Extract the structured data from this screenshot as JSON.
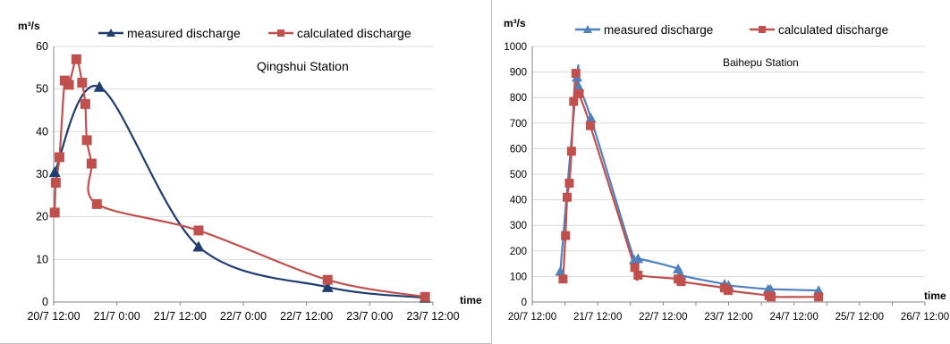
{
  "chart_data": [
    {
      "type": "line",
      "title": "Qingshui Station",
      "ylabel": "m³/s",
      "xlabel": "time",
      "ylim": [
        0,
        60
      ],
      "y_ticks": [
        "0",
        "10",
        "20",
        "30",
        "40",
        "50",
        "60"
      ],
      "x_ticks": [
        "20/7 12:00",
        "21/7 0:00",
        "21/7 12:00",
        "22/7 0:00",
        "22/7 12:00",
        "23/7 0:00",
        "23/7 12:00"
      ],
      "xlim": [
        0,
        72
      ],
      "grid": "horizontal",
      "legend": "top",
      "series": [
        {
          "name": "measured discharge",
          "marker": "triangle",
          "color": "#1F3D6E",
          "x": [
            0.2,
            8.7,
            27.5,
            52.0,
            70.5
          ],
          "y": [
            30.5,
            50.5,
            13,
            3.5,
            1
          ]
        },
        {
          "name": "calculated discharge",
          "marker": "square",
          "color": "#C0504D",
          "x": [
            0.2,
            0.4,
            1.1,
            2.1,
            2.9,
            4.3,
            5.4,
            6.0,
            6.3,
            7.2,
            8.2
          ],
          "y": [
            21,
            28,
            34,
            52,
            51,
            57,
            51.5,
            46.5,
            38,
            32.5,
            23
          ]
        }
      ],
      "tail": {
        "x": [
          27.5,
          52.0,
          70.5
        ],
        "y": [
          16.8,
          5.2,
          1.2
        ]
      }
    },
    {
      "type": "line",
      "title": "Baihepu Station",
      "ylabel": "m³/s",
      "xlabel": "time",
      "ylim": [
        0,
        1000
      ],
      "y_ticks": [
        "0",
        "100",
        "200",
        "300",
        "400",
        "500",
        "600",
        "700",
        "800",
        "900",
        "1000"
      ],
      "x_ticks": [
        "20/7 12:00",
        "21/7 0:00",
        "21/7 12:00",
        "22/7 0:00",
        "22/7 12:00",
        "23/7 0:00",
        "23/7 12:00",
        "24/7 0:00",
        "24/7 12:00",
        "25/7 0:00",
        "25/7 12:00",
        "26/7 0:00",
        "26/7 12:00"
      ],
      "x_tick_indices": [
        0,
        2,
        4,
        6,
        8,
        10,
        12
      ],
      "xlim": [
        0,
        144
      ],
      "grid": "horizontal",
      "legend": "top",
      "series": [
        {
          "name": "measured discharge",
          "marker": "triangle",
          "color": "#4F81BD",
          "x": [
            10.3,
            16.4,
            17.2,
            21.5,
            37.4,
            38.8,
            53.5,
            54.5,
            70.5,
            72.0,
            86.5,
            87.4,
            105.0
          ],
          "y": [
            120,
            880,
            840,
            720,
            165,
            170,
            130,
            105,
            70,
            65,
            50,
            50,
            45
          ]
        },
        {
          "name": "calculated discharge",
          "marker": "square",
          "color": "#C0504D",
          "x": [
            11.3,
            12.2,
            12.8,
            13.6,
            14.4,
            15.2,
            16.0,
            17.2,
            21.3,
            37.6,
            38.8,
            53.5,
            54.6,
            70.5,
            71.8,
            86.8,
            87.6,
            105.0
          ],
          "y": [
            90,
            260,
            410,
            465,
            590,
            785,
            895,
            815,
            690,
            135,
            105,
            90,
            80,
            55,
            45,
            25,
            20,
            20
          ]
        }
      ]
    }
  ],
  "legend_names": [
    "measured discharge",
    "calculated discharge"
  ],
  "unit_label": "m³/s",
  "time_label": "time"
}
